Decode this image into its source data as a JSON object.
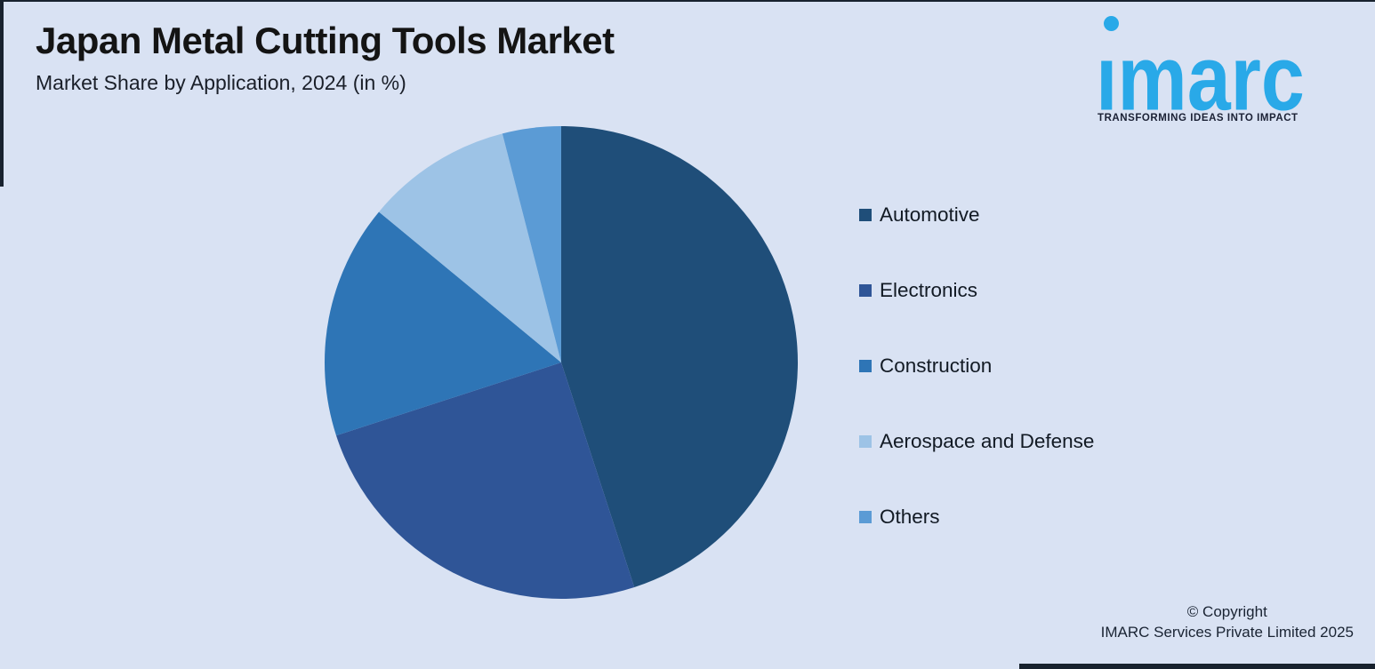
{
  "page": {
    "background_color": "#D9E2F3"
  },
  "header": {
    "title": "Japan Metal Cutting Tools Market",
    "subtitle": "Market Share by Application, 2024 (in %)"
  },
  "logo": {
    "wordmark": "imarc",
    "tagline": "TRANSFORMING IDEAS INTO IMPACT",
    "brand_color": "#29A9E8",
    "tagline_color": "#1B2135"
  },
  "chart_data": {
    "type": "pie",
    "title": "Japan Metal Cutting Tools Market",
    "subtitle": "Market Share by Application, 2024 (in %)",
    "unit": "%",
    "categories": [
      "Automotive",
      "Electronics",
      "Construction",
      "Aerospace and Defense",
      "Others"
    ],
    "values": [
      45,
      25,
      16,
      10,
      4
    ],
    "colors": [
      "#1F4E79",
      "#2F5597",
      "#2E75B6",
      "#9DC3E6",
      "#5B9BD5"
    ],
    "start_angle_deg": 0,
    "direction": "clockwise",
    "legend_position": "right",
    "data_labels": false
  },
  "footer": {
    "copyright_line1": "© Copyright",
    "copyright_line2": "IMARC Services Private Limited 2025"
  }
}
